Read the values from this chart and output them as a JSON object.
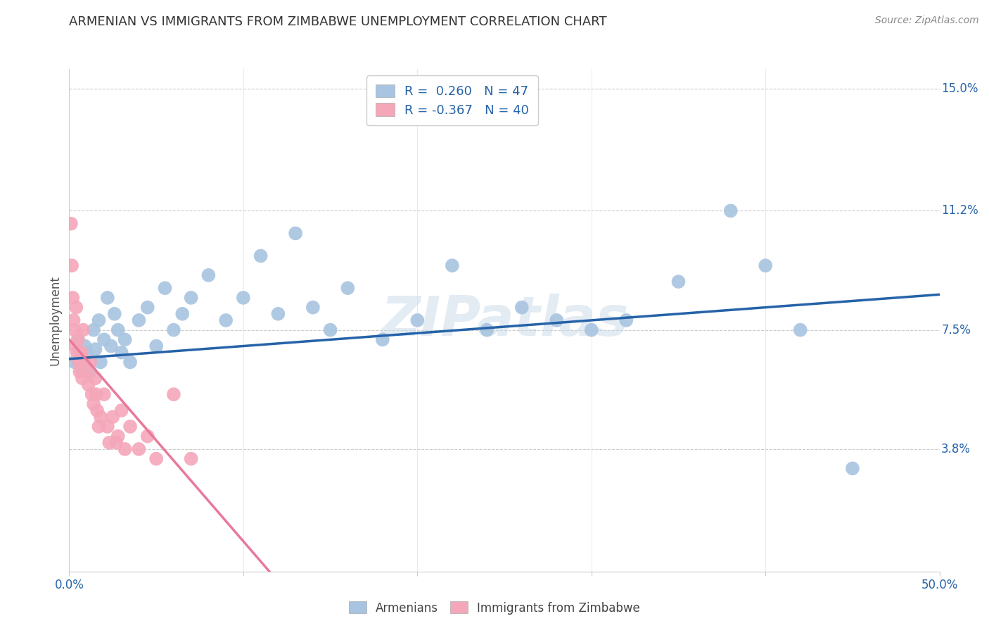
{
  "title": "ARMENIAN VS IMMIGRANTS FROM ZIMBABWE UNEMPLOYMENT CORRELATION CHART",
  "source": "Source: ZipAtlas.com",
  "ylabel": "Unemployment",
  "yticks": [
    3.8,
    7.5,
    11.2,
    15.0
  ],
  "ytick_labels": [
    "3.8%",
    "7.5%",
    "11.2%",
    "15.0%"
  ],
  "xmin": 0.0,
  "xmax": 50.0,
  "ymin": 0.0,
  "ymax": 15.6,
  "armenian_color": "#a8c4e0",
  "zimbabwe_color": "#f4a7b9",
  "armenian_line_color": "#2563a8",
  "zimbabwe_line_color": "#e8799a",
  "r_armenian": 0.26,
  "n_armenian": 47,
  "r_zimbabwe": -0.367,
  "n_zimbabwe": 40,
  "watermark": "ZIPatlas",
  "armenian_points": [
    [
      0.3,
      6.5
    ],
    [
      0.5,
      7.2
    ],
    [
      0.7,
      6.3
    ],
    [
      0.9,
      7.0
    ],
    [
      1.0,
      6.8
    ],
    [
      1.2,
      6.2
    ],
    [
      1.4,
      7.5
    ],
    [
      1.5,
      6.9
    ],
    [
      1.7,
      7.8
    ],
    [
      1.8,
      6.5
    ],
    [
      2.0,
      7.2
    ],
    [
      2.2,
      8.5
    ],
    [
      2.4,
      7.0
    ],
    [
      2.6,
      8.0
    ],
    [
      2.8,
      7.5
    ],
    [
      3.0,
      6.8
    ],
    [
      3.2,
      7.2
    ],
    [
      3.5,
      6.5
    ],
    [
      4.0,
      7.8
    ],
    [
      4.5,
      8.2
    ],
    [
      5.0,
      7.0
    ],
    [
      5.5,
      8.8
    ],
    [
      6.0,
      7.5
    ],
    [
      6.5,
      8.0
    ],
    [
      7.0,
      8.5
    ],
    [
      8.0,
      9.2
    ],
    [
      9.0,
      7.8
    ],
    [
      10.0,
      8.5
    ],
    [
      11.0,
      9.8
    ],
    [
      12.0,
      8.0
    ],
    [
      13.0,
      10.5
    ],
    [
      14.0,
      8.2
    ],
    [
      15.0,
      7.5
    ],
    [
      16.0,
      8.8
    ],
    [
      18.0,
      7.2
    ],
    [
      20.0,
      7.8
    ],
    [
      22.0,
      9.5
    ],
    [
      24.0,
      7.5
    ],
    [
      26.0,
      8.2
    ],
    [
      28.0,
      7.8
    ],
    [
      30.0,
      7.5
    ],
    [
      32.0,
      7.8
    ],
    [
      35.0,
      9.0
    ],
    [
      38.0,
      11.2
    ],
    [
      40.0,
      9.5
    ],
    [
      42.0,
      7.5
    ],
    [
      45.0,
      3.2
    ]
  ],
  "zimbabwe_points": [
    [
      0.1,
      10.8
    ],
    [
      0.15,
      9.5
    ],
    [
      0.2,
      8.5
    ],
    [
      0.25,
      7.8
    ],
    [
      0.3,
      7.5
    ],
    [
      0.35,
      7.0
    ],
    [
      0.4,
      8.2
    ],
    [
      0.45,
      6.8
    ],
    [
      0.5,
      7.2
    ],
    [
      0.55,
      6.5
    ],
    [
      0.6,
      6.2
    ],
    [
      0.7,
      6.8
    ],
    [
      0.75,
      6.0
    ],
    [
      0.8,
      7.5
    ],
    [
      0.9,
      6.5
    ],
    [
      1.0,
      6.2
    ],
    [
      1.1,
      5.8
    ],
    [
      1.2,
      6.5
    ],
    [
      1.3,
      5.5
    ],
    [
      1.4,
      5.2
    ],
    [
      1.5,
      6.0
    ],
    [
      1.6,
      5.0
    ],
    [
      1.8,
      4.8
    ],
    [
      2.0,
      5.5
    ],
    [
      2.2,
      4.5
    ],
    [
      2.5,
      4.8
    ],
    [
      2.8,
      4.2
    ],
    [
      3.0,
      5.0
    ],
    [
      3.5,
      4.5
    ],
    [
      4.0,
      3.8
    ],
    [
      4.5,
      4.2
    ],
    [
      5.0,
      3.5
    ],
    [
      6.0,
      5.5
    ],
    [
      7.0,
      3.5
    ],
    [
      1.7,
      4.5
    ],
    [
      2.3,
      4.0
    ],
    [
      0.65,
      6.8
    ],
    [
      1.55,
      5.5
    ],
    [
      3.2,
      3.8
    ],
    [
      2.7,
      4.0
    ]
  ],
  "armenian_trend": {
    "x_start": 0.0,
    "y_start": 6.6,
    "x_end": 50.0,
    "y_end": 8.6
  },
  "zimbabwe_trend": {
    "x_start": 0.0,
    "y_start": 7.2,
    "x_end": 11.5,
    "y_end": 0.0
  },
  "grid_color": "#cccccc",
  "background_color": "#ffffff",
  "title_color": "#333333",
  "axis_label_color": "#2563a8",
  "right_axis_color": "#2563a8"
}
